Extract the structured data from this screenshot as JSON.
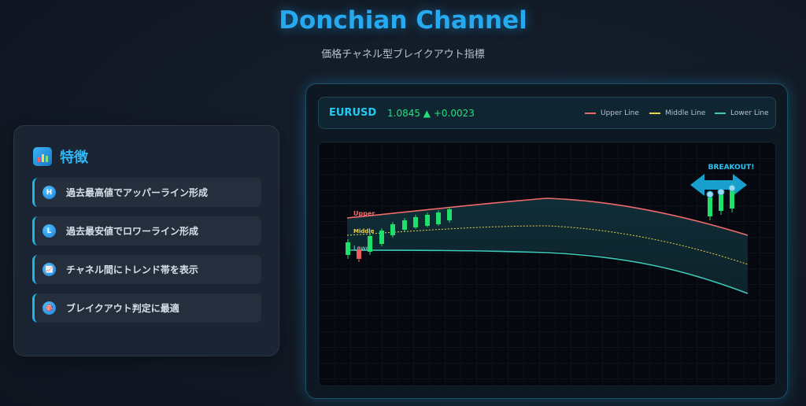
{
  "header": {
    "title": "Donchian Channel",
    "subtitle": "価格チャネル型ブレイクアウト指標"
  },
  "features": {
    "title": "特徴",
    "icon": "bar-chart-icon",
    "items": [
      {
        "badge": "H",
        "icon": "h-badge-icon",
        "text": "過去最高値でアッパーライン形成"
      },
      {
        "badge": "L",
        "icon": "l-badge-icon",
        "text": "過去最安値でロワーライン形成"
      },
      {
        "badge": "📈",
        "icon": "trend-chart-icon",
        "text": "チャネル間にトレンド帯を表示"
      },
      {
        "badge": "🎯",
        "icon": "target-icon",
        "text": "ブレイクアウト判定に最適"
      }
    ]
  },
  "ticker": {
    "symbol": "EURUSD",
    "price": "1.0845 ▲ +0.0023",
    "price_color": "#23e07d"
  },
  "legend": [
    {
      "label": "Upper Line",
      "color": "#ef6b6b"
    },
    {
      "label": "Middle Line",
      "color": "#e8d24a"
    },
    {
      "label": "Lower Line",
      "color": "#3cc9b9"
    }
  ],
  "chart": {
    "line_labels": {
      "upper": "Upper",
      "middle": "Middle",
      "lower": "Lower"
    },
    "breakout_label": "BREAKOUT!",
    "colors": {
      "up": "#1fe06a",
      "down": "#ef5a5a",
      "upper": "#ef6b6b",
      "middle": "#e8d24a",
      "lower": "#3cc9b9",
      "breakout": "#1aa8d8"
    }
  }
}
